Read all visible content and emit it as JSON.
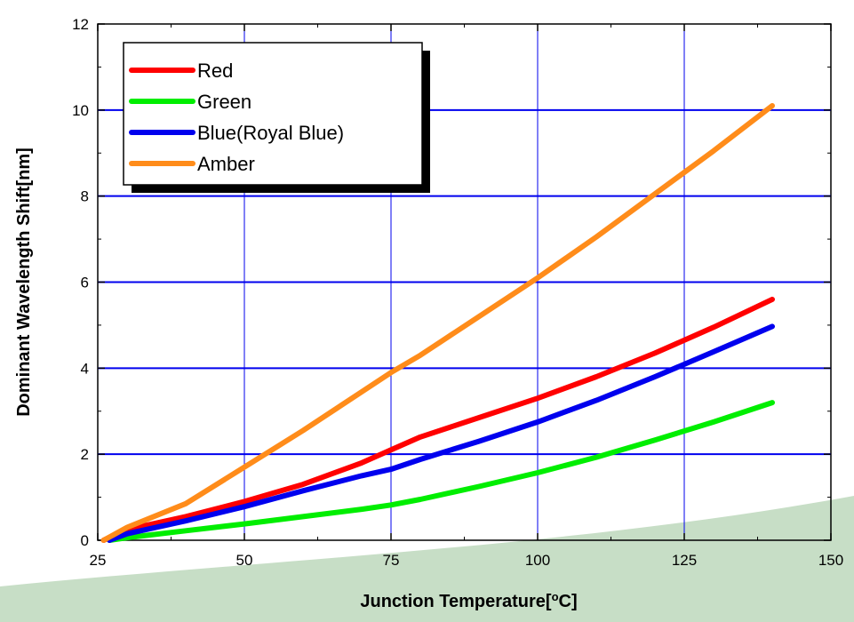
{
  "chart_data": {
    "type": "line",
    "title": "",
    "xlabel": "Junction Temperature[",
    "xlabel_sup": "o",
    "xlabel_tail": "C]",
    "ylabel": "Dominant Wavelength Shift[nm]",
    "xlim": [
      25,
      150
    ],
    "ylim": [
      0,
      12
    ],
    "xticks": [
      "25",
      "50",
      "75",
      "100",
      "125",
      "150"
    ],
    "yticks": [
      "0",
      "2",
      "4",
      "6",
      "8",
      "10",
      "12"
    ],
    "grid": true,
    "legend_position": "top-left",
    "series": [
      {
        "name": "Red",
        "color": "#ff0000",
        "points": [
          [
            26,
            0
          ],
          [
            30,
            0.25
          ],
          [
            40,
            0.55
          ],
          [
            50,
            0.9
          ],
          [
            60,
            1.3
          ],
          [
            70,
            1.8
          ],
          [
            75,
            2.1
          ],
          [
            80,
            2.4
          ],
          [
            90,
            2.85
          ],
          [
            100,
            3.3
          ],
          [
            110,
            3.8
          ],
          [
            120,
            4.35
          ],
          [
            130,
            4.95
          ],
          [
            140,
            5.6
          ]
        ]
      },
      {
        "name": "Green",
        "color": "#00ee00",
        "points": [
          [
            27,
            0
          ],
          [
            30,
            0.06
          ],
          [
            40,
            0.22
          ],
          [
            50,
            0.38
          ],
          [
            60,
            0.55
          ],
          [
            70,
            0.72
          ],
          [
            75,
            0.82
          ],
          [
            80,
            0.95
          ],
          [
            90,
            1.25
          ],
          [
            100,
            1.57
          ],
          [
            110,
            1.93
          ],
          [
            120,
            2.33
          ],
          [
            130,
            2.75
          ],
          [
            140,
            3.2
          ]
        ]
      },
      {
        "name": "Blue(Royal Blue)",
        "color": "#0000ee",
        "points": [
          [
            27,
            0
          ],
          [
            30,
            0.15
          ],
          [
            40,
            0.45
          ],
          [
            50,
            0.78
          ],
          [
            60,
            1.15
          ],
          [
            70,
            1.5
          ],
          [
            75,
            1.65
          ],
          [
            80,
            1.88
          ],
          [
            90,
            2.3
          ],
          [
            100,
            2.75
          ],
          [
            110,
            3.25
          ],
          [
            120,
            3.8
          ],
          [
            130,
            4.38
          ],
          [
            140,
            4.97
          ]
        ]
      },
      {
        "name": "Amber",
        "color": "#ff8c1a",
        "points": [
          [
            26,
            0
          ],
          [
            30,
            0.3
          ],
          [
            40,
            0.85
          ],
          [
            50,
            1.7
          ],
          [
            60,
            2.55
          ],
          [
            70,
            3.45
          ],
          [
            75,
            3.9
          ],
          [
            80,
            4.3
          ],
          [
            90,
            5.2
          ],
          [
            100,
            6.1
          ],
          [
            110,
            7.05
          ],
          [
            120,
            8.05
          ],
          [
            130,
            9.05
          ],
          [
            140,
            10.1
          ]
        ]
      }
    ]
  }
}
